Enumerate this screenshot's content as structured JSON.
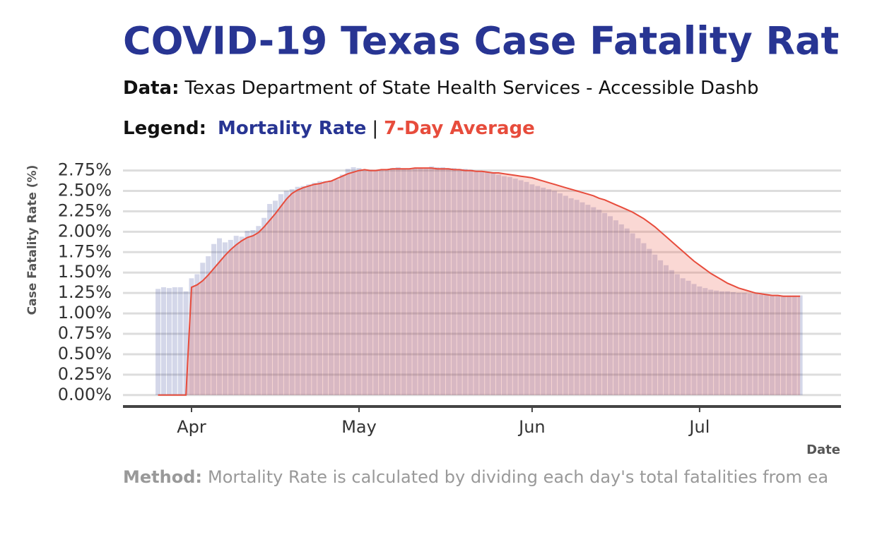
{
  "chart_data": {
    "type": "bar",
    "title": "COVID-19 Texas Case Fatality Rat",
    "subtitle_label": "Data:",
    "subtitle": "Texas Department of State Health Services - Accessible Dashb",
    "legend_label": "Legend:",
    "legend_separator": "|",
    "y_label": "Case Fatality Rate (%)",
    "x_label": "Date",
    "method_label": "Method:",
    "method": "Mortality Rate is calculated by dividing each day's total fatalities from ea",
    "categories": [
      null,
      null,
      null,
      null,
      null,
      null,
      "Apr",
      null,
      null,
      null,
      null,
      null,
      null,
      null,
      null,
      null,
      null,
      null,
      null,
      null,
      null,
      null,
      null,
      null,
      null,
      null,
      null,
      null,
      null,
      null,
      null,
      null,
      null,
      null,
      null,
      null,
      "May",
      null,
      null,
      null,
      null,
      null,
      null,
      null,
      null,
      null,
      null,
      null,
      null,
      null,
      null,
      null,
      null,
      null,
      null,
      null,
      null,
      null,
      null,
      null,
      null,
      null,
      null,
      null,
      null,
      null,
      null,
      "Jun",
      null,
      null,
      null,
      null,
      null,
      null,
      null,
      null,
      null,
      null,
      null,
      null,
      null,
      null,
      null,
      null,
      null,
      null,
      null,
      null,
      null,
      null,
      null,
      null,
      null,
      null,
      null,
      null,
      null,
      "Jul",
      null,
      null,
      null,
      null,
      null,
      null,
      null,
      null,
      null,
      null,
      null,
      null,
      null,
      null,
      null,
      null,
      null,
      null
    ],
    "series": [
      {
        "name": "Mortality Rate",
        "type": "bar",
        "color": "#283593",
        "values": [
          1.3,
          1.32,
          1.31,
          1.32,
          1.32,
          1.27,
          1.43,
          1.48,
          1.62,
          1.7,
          1.85,
          1.92,
          1.87,
          1.9,
          1.95,
          1.94,
          2.01,
          2.02,
          2.07,
          2.17,
          2.34,
          2.38,
          2.46,
          2.5,
          2.52,
          2.55,
          2.56,
          2.58,
          2.6,
          2.62,
          2.62,
          2.63,
          2.64,
          2.7,
          2.77,
          2.79,
          2.78,
          2.76,
          2.76,
          2.75,
          2.76,
          2.76,
          2.78,
          2.79,
          2.77,
          2.76,
          2.78,
          2.78,
          2.77,
          2.8,
          2.79,
          2.79,
          2.78,
          2.78,
          2.77,
          2.77,
          2.76,
          2.75,
          2.74,
          2.73,
          2.72,
          2.7,
          2.68,
          2.67,
          2.65,
          2.63,
          2.61,
          2.58,
          2.56,
          2.54,
          2.52,
          2.5,
          2.47,
          2.44,
          2.41,
          2.39,
          2.36,
          2.33,
          2.3,
          2.27,
          2.23,
          2.19,
          2.14,
          2.09,
          2.04,
          1.98,
          1.92,
          1.86,
          1.79,
          1.72,
          1.65,
          1.59,
          1.53,
          1.48,
          1.43,
          1.4,
          1.36,
          1.33,
          1.31,
          1.29,
          1.28,
          1.27,
          1.27,
          1.26,
          1.25,
          1.25,
          1.24,
          1.24,
          1.23,
          1.23,
          1.22,
          1.22,
          1.22,
          1.22,
          1.22,
          1.22
        ]
      },
      {
        "name": "7-Day Average",
        "type": "line",
        "color": "#e74c3c",
        "values": [
          0,
          0,
          0,
          0,
          0,
          0,
          1.32,
          1.35,
          1.4,
          1.47,
          1.55,
          1.63,
          1.71,
          1.78,
          1.84,
          1.89,
          1.93,
          1.95,
          1.99,
          2.06,
          2.14,
          2.22,
          2.31,
          2.4,
          2.47,
          2.51,
          2.54,
          2.56,
          2.58,
          2.59,
          2.61,
          2.62,
          2.65,
          2.68,
          2.71,
          2.73,
          2.75,
          2.76,
          2.75,
          2.75,
          2.76,
          2.76,
          2.77,
          2.77,
          2.77,
          2.77,
          2.78,
          2.78,
          2.78,
          2.78,
          2.77,
          2.77,
          2.77,
          2.76,
          2.76,
          2.75,
          2.75,
          2.74,
          2.74,
          2.73,
          2.72,
          2.72,
          2.71,
          2.7,
          2.69,
          2.68,
          2.67,
          2.66,
          2.64,
          2.62,
          2.6,
          2.58,
          2.56,
          2.54,
          2.52,
          2.5,
          2.48,
          2.46,
          2.44,
          2.41,
          2.39,
          2.36,
          2.33,
          2.3,
          2.27,
          2.24,
          2.2,
          2.16,
          2.11,
          2.06,
          2.0,
          1.94,
          1.88,
          1.82,
          1.76,
          1.7,
          1.64,
          1.59,
          1.54,
          1.49,
          1.45,
          1.41,
          1.37,
          1.34,
          1.31,
          1.29,
          1.27,
          1.25,
          1.24,
          1.23,
          1.22,
          1.22,
          1.21,
          1.21,
          1.21,
          1.21
        ]
      }
    ],
    "ylim": [
      -0.14,
      2.85
    ],
    "yticks": [
      {
        "value": 0,
        "label": "0.00%"
      },
      {
        "value": 0.25,
        "label": "0.25%"
      },
      {
        "value": 0.5,
        "label": "0.50%"
      },
      {
        "value": 0.75,
        "label": "0.75%"
      },
      {
        "value": 1,
        "label": "1.00%"
      },
      {
        "value": 1.25,
        "label": "1.25%"
      },
      {
        "value": 1.5,
        "label": "1.50%"
      },
      {
        "value": 1.75,
        "label": "1.75%"
      },
      {
        "value": 2,
        "label": "2.00%"
      },
      {
        "value": 2.25,
        "label": "2.25%"
      },
      {
        "value": 2.5,
        "label": "2.50%"
      },
      {
        "value": 2.75,
        "label": "2.75%"
      }
    ],
    "grid": true
  }
}
